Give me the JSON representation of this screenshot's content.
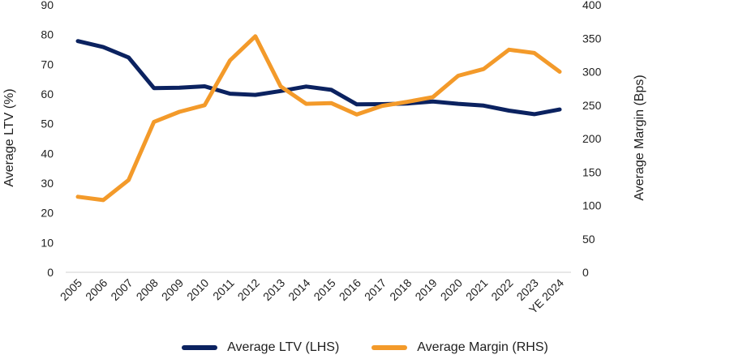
{
  "chart_data": {
    "type": "line",
    "title": "",
    "categories": [
      "2005",
      "2006",
      "2007",
      "2008",
      "2009",
      "2010",
      "2011",
      "2012",
      "2013",
      "2014",
      "2015",
      "2016",
      "2017",
      "2018",
      "2019",
      "2020",
      "2021",
      "2022",
      "2023",
      "YE 2024"
    ],
    "series": [
      {
        "name": "Average LTV (LHS)",
        "axis": "left",
        "color": "#0b2260",
        "values": [
          77.8,
          75.8,
          72.3,
          62.0,
          62.1,
          62.6,
          60.1,
          59.7,
          61.0,
          62.5,
          61.4,
          56.5,
          56.6,
          56.8,
          57.5,
          56.7,
          56.1,
          54.4,
          53.2,
          54.8
        ]
      },
      {
        "name": "Average Margin (RHS)",
        "axis": "right",
        "color": "#f39a2a",
        "values": [
          113,
          108,
          138,
          225,
          240,
          250,
          317,
          353,
          278,
          252,
          253,
          236,
          249,
          255,
          262,
          294,
          304,
          333,
          328,
          300
        ]
      }
    ],
    "ylabel": "Average LTV (%)",
    "ylim": [
      0,
      90
    ],
    "yticks": [
      "0",
      "10",
      "20",
      "30",
      "40",
      "50",
      "60",
      "70",
      "80",
      "90"
    ],
    "y2label": "Average Margin (Bps)",
    "y2lim": [
      0,
      400
    ],
    "y2ticks": [
      "0",
      "50",
      "100",
      "150",
      "200",
      "250",
      "300",
      "350",
      "400"
    ],
    "legend_position": "bottom",
    "grid": false
  }
}
